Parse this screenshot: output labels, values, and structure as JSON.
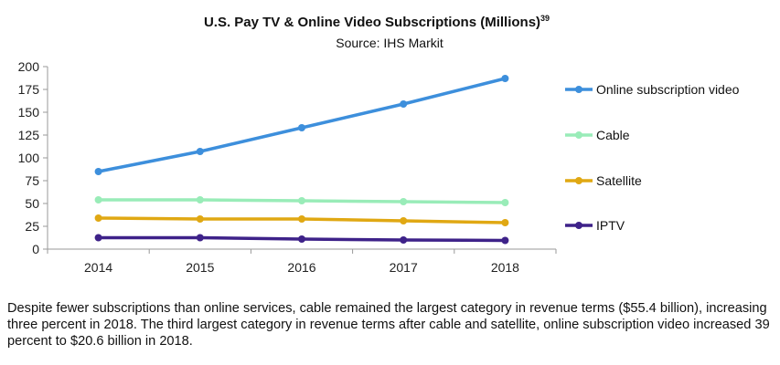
{
  "chart_data": {
    "type": "line",
    "title": "U.S. Pay TV & Online Video Subscriptions (Millions)",
    "title_superscript": "39",
    "subtitle": "Source: IHS Markit",
    "xlabel": "",
    "ylabel": "",
    "categories": [
      "2014",
      "2015",
      "2016",
      "2017",
      "2018"
    ],
    "ylim": [
      0,
      200
    ],
    "yticks": [
      "0",
      "25",
      "50",
      "75",
      "100",
      "125",
      "150",
      "175",
      "200"
    ],
    "grid": false,
    "legend_position": "right",
    "series": [
      {
        "name": "Online subscription video",
        "color": "#3d8fdc",
        "values": [
          85,
          107,
          133,
          159,
          187
        ]
      },
      {
        "name": "Cable",
        "color": "#99ecb8",
        "values": [
          54,
          54,
          53,
          52,
          51
        ]
      },
      {
        "name": "Satellite",
        "color": "#e0a813",
        "values": [
          34,
          33,
          33,
          31,
          29
        ]
      },
      {
        "name": "IPTV",
        "color": "#3e2289",
        "values": [
          12.5,
          12.5,
          11,
          10,
          9.5
        ]
      }
    ]
  },
  "caption": "Despite fewer subscriptions than online services, cable remained the largest category in revenue terms ($55.4 billion), increasing three percent in 2018. The third largest category in revenue terms after cable and satellite, online subscription video increased 39 percent to $20.6 billion in 2018."
}
